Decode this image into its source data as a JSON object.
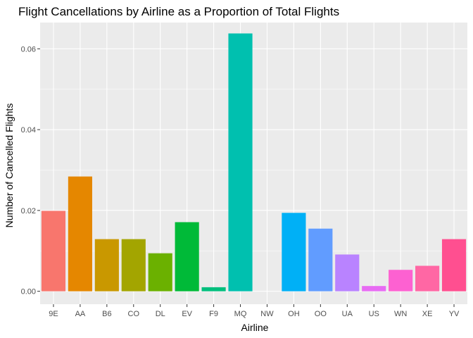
{
  "chart_data": {
    "type": "bar",
    "title": "Flight Cancellations by Airline as a Proportion of Total Flights",
    "xlabel": "Airline",
    "ylabel": "Number of Cancelled Flights",
    "categories": [
      "9E",
      "AA",
      "B6",
      "CO",
      "DL",
      "EV",
      "F9",
      "MQ",
      "NW",
      "OH",
      "OO",
      "UA",
      "US",
      "WN",
      "XE",
      "YV"
    ],
    "values": [
      0.0199,
      0.0284,
      0.0129,
      0.0129,
      0.0094,
      0.0171,
      0.001,
      0.0638,
      0.0,
      0.0194,
      0.0155,
      0.0091,
      0.0013,
      0.0053,
      0.0063,
      0.0129
    ],
    "colors": [
      "#F8766D",
      "#E58700",
      "#C99800",
      "#A3A500",
      "#6BB100",
      "#00BA38",
      "#00BF7D",
      "#00C0AF",
      "#00BCD8",
      "#00B0F6",
      "#619CFF",
      "#B983FF",
      "#E76BF3",
      "#FD61D1",
      "#FF67A4",
      "#FF4F90"
    ],
    "ylim": [
      -0.0032,
      0.0665
    ],
    "yticks": [
      0.0,
      0.02,
      0.04,
      0.06
    ],
    "ytick_labels": [
      "0.00",
      "0.02",
      "0.04",
      "0.06"
    ],
    "grid": true,
    "legend": "none"
  }
}
